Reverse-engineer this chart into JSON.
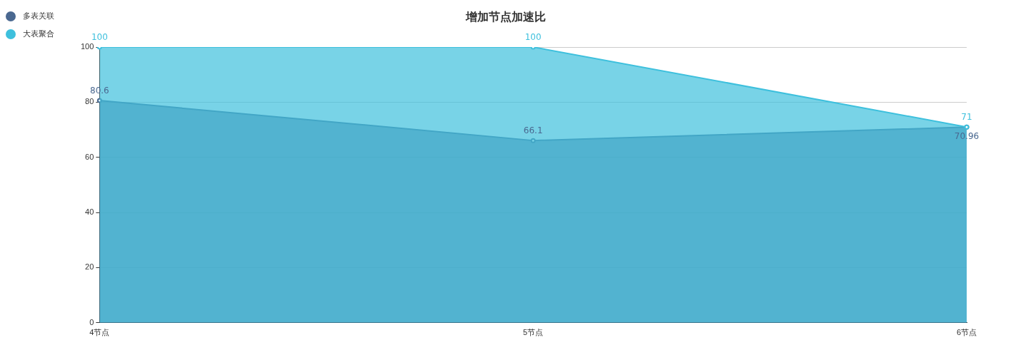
{
  "chart_data": {
    "type": "area",
    "title": "增加节点加速比",
    "categories": [
      "4节点",
      "5节点",
      "6节点"
    ],
    "series": [
      {
        "name": "多表关联",
        "color": "#4a6890",
        "values": [
          80.6,
          66.1,
          70.96
        ]
      },
      {
        "name": "大表聚合",
        "color": "#3ec0dd",
        "values": [
          100,
          100,
          71
        ]
      }
    ],
    "ylim": [
      0,
      100
    ],
    "yticks": [
      0,
      20,
      40,
      60,
      80,
      100
    ],
    "grid": "y",
    "legend": "top left",
    "marker": "circle",
    "data_labels": true
  }
}
